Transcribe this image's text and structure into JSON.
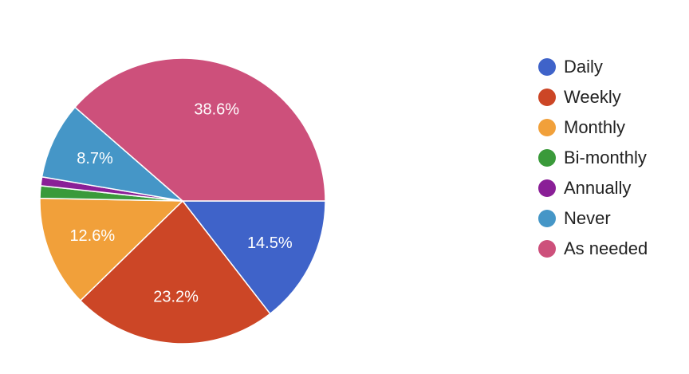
{
  "chart_data": {
    "type": "pie",
    "title": "",
    "legend_position": "right",
    "start": "3 o'clock, clockwise",
    "slices": [
      {
        "label": "Daily",
        "value": 14.5,
        "display": "14.5%",
        "color": "#3f63c9"
      },
      {
        "label": "Weekly",
        "value": 23.2,
        "display": "23.2%",
        "color": "#cc4626"
      },
      {
        "label": "Monthly",
        "value": 12.6,
        "display": "12.6%",
        "color": "#f1a03a"
      },
      {
        "label": "Bi-monthly",
        "value": 1.4,
        "display": "",
        "color": "#3a9a3a"
      },
      {
        "label": "Annually",
        "value": 1.0,
        "display": "",
        "color": "#8a1f97"
      },
      {
        "label": "Never",
        "value": 8.7,
        "display": "8.7%",
        "color": "#4596c7"
      },
      {
        "label": "As needed",
        "value": 38.6,
        "display": "38.6%",
        "color": "#cd507b"
      }
    ]
  }
}
